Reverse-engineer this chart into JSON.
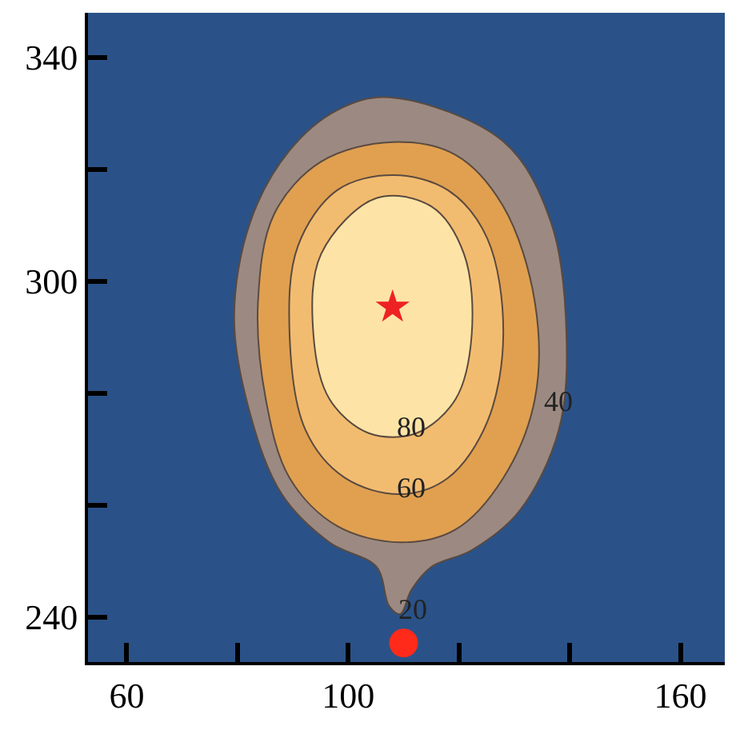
{
  "chart_data": {
    "type": "area",
    "xlim": [
      53,
      168
    ],
    "ylim": [
      232,
      348
    ],
    "xticks": [
      60,
      {
        "value": 80,
        "label": null
      },
      100,
      {
        "value": 120,
        "label": null
      },
      {
        "value": 140,
        "label": null
      },
      160
    ],
    "yticks": [
      {
        "value": 240,
        "label": "240"
      },
      {
        "value": 260,
        "label": null
      },
      {
        "value": 280,
        "label": null
      },
      300,
      {
        "value": 320,
        "label": null
      },
      340
    ],
    "grid": false,
    "legend": false,
    "series": [
      {
        "color": "#9c8a82",
        "x": [
          107.4,
          128,
          136.6,
          139.4,
          138,
          130.9,
          122.3,
          115,
          111.4,
          109.4,
          107.4,
          105.1,
          96.6,
          88,
          82.3,
          79.4,
          82.3,
          89.4,
          98,
          107.4
        ],
        "values": [
          332.9,
          325,
          310.6,
          290.6,
          273.4,
          259,
          252,
          249,
          244.9,
          240.6,
          242,
          249,
          253.4,
          262,
          276.3,
          293.4,
          310.6,
          323.4,
          330.6,
          332.9
        ]
      },
      {
        "color": "#e0a050",
        "x": [
          108,
          119.4,
          128,
          133.7,
          133.7,
          128,
          119.4,
          109.4,
          98,
          89.4,
          85.1,
          83.7,
          86.6,
          95.1,
          108
        ],
        "values": [
          324.9,
          322.6,
          313.4,
          296.3,
          279,
          264.9,
          255.7,
          253.4,
          256.3,
          264.9,
          279,
          296.3,
          312,
          321.4,
          324.9
        ]
      },
      {
        "color": "#f2bc70",
        "x": [
          108,
          118,
          125.1,
          128,
          125.1,
          118,
          109.4,
          99.4,
          92.3,
          89.4,
          90.9,
          98,
          108
        ],
        "values": [
          319,
          316.3,
          307.7,
          290.6,
          274.9,
          264.9,
          262,
          264.9,
          273.4,
          290.6,
          306.3,
          316.3,
          319
        ]
      },
      {
        "color": "#fde4a6",
        "x": [
          105.1,
          115,
          120.9,
          122.3,
          119.4,
          112.3,
          103.7,
          96.6,
          93.7,
          95.1,
          105.1
        ],
        "values": [
          314.9,
          313.4,
          304.9,
          290.6,
          279,
          272.9,
          272.9,
          279,
          290.6,
          304.9,
          314.9
        ]
      },
      {
        "type": "scatter",
        "marker": "star",
        "color": "#ee2222",
        "x": [
          108
        ],
        "values": [
          295.4
        ]
      },
      {
        "type": "scatter",
        "marker": "circle",
        "color": "#ff2a1a",
        "x": [
          110
        ],
        "values": [
          235.4
        ]
      }
    ],
    "annotations": [
      {
        "text": "80",
        "x": 111.4,
        "y": 274
      },
      {
        "text": "60",
        "x": 111.4,
        "y": 263.1
      },
      {
        "text": "40",
        "x": 138,
        "y": 278.6
      },
      {
        "text": "20",
        "x": 111.7,
        "y": 241.4
      }
    ]
  }
}
